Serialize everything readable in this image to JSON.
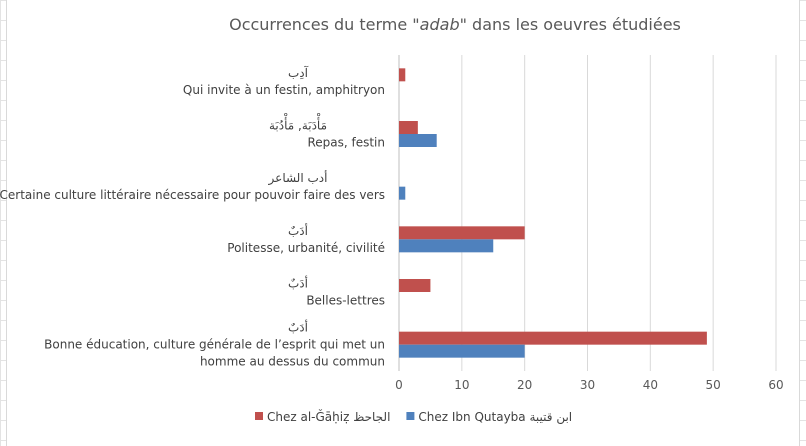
{
  "chart_data": {
    "type": "bar",
    "orientation": "horizontal",
    "title_parts": [
      "Occurrences du terme \"",
      "adab",
      "\" dans les oeuvres étudiées"
    ],
    "categories": [
      {
        "arabic": "آدِب",
        "lines": [
          "Qui invite à un festin, amphitryon"
        ]
      },
      {
        "arabic": "مَأْدَبَة, مَأْدُبَة",
        "lines": [
          "Repas, festin"
        ]
      },
      {
        "arabic": "أدب الشاعر",
        "lines": [
          "Certaine culture littéraire nécessaire pour pouvoir faire des vers"
        ]
      },
      {
        "arabic": "أدَبٌ",
        "lines": [
          "Politesse, urbanité, civilité"
        ]
      },
      {
        "arabic": "أدَبٌ",
        "lines": [
          "Belles-lettres"
        ]
      },
      {
        "arabic": "أدَبٌ",
        "lines": [
          "Bonne éducation, culture générale de l’esprit qui met un",
          "homme au dessus du commun"
        ]
      }
    ],
    "series": [
      {
        "name": "Chez al-Ǧāḥiẓ الجاحظ",
        "color": "#C0504D",
        "values": [
          1,
          3,
          0,
          20,
          5,
          49
        ]
      },
      {
        "name": "Chez Ibn Qutayba ابن قتيبة",
        "color": "#4F81BD",
        "values": [
          0,
          6,
          1,
          15,
          0,
          20
        ]
      }
    ],
    "xlim": [
      0,
      60
    ],
    "xticks": [
      "0",
      "10",
      "20",
      "30",
      "40",
      "50",
      "60"
    ],
    "grid": true,
    "legend_position": "bottom"
  }
}
